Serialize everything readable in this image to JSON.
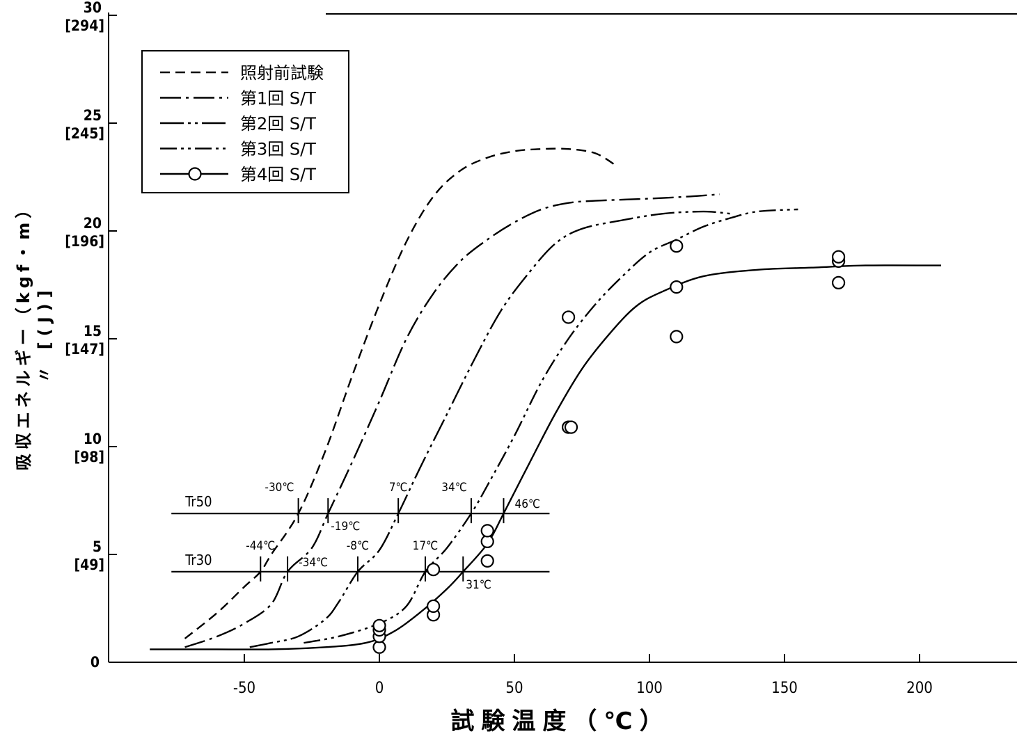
{
  "chart_data": {
    "type": "line",
    "xlabel": "試験温度（℃）",
    "ylabel": "吸収エネルギー（kgf・m）",
    "ylabel2": "〃 [(J)]",
    "xlim": [
      -100,
      235
    ],
    "ylim": [
      0,
      30
    ],
    "x_ticks": [
      {
        "value": -50,
        "label": "-50"
      },
      {
        "value": 0,
        "label": "0"
      },
      {
        "value": 50,
        "label": "50"
      },
      {
        "value": 100,
        "label": "100"
      },
      {
        "value": 150,
        "label": "150"
      },
      {
        "value": 200,
        "label": "200"
      }
    ],
    "y_ticks": [
      {
        "value": 0,
        "label": "0",
        "sub": ""
      },
      {
        "value": 5,
        "label": "5",
        "sub": "[49]"
      },
      {
        "value": 10,
        "label": "10",
        "sub": "[98]"
      },
      {
        "value": 15,
        "label": "15",
        "sub": "[147]"
      },
      {
        "value": 20,
        "label": "20",
        "sub": "[196]"
      },
      {
        "value": 25,
        "label": "25",
        "sub": "[245]"
      },
      {
        "value": 30,
        "label": "30",
        "sub": "[294]"
      }
    ],
    "legend_position": "top-left",
    "series": [
      {
        "name": "照射前試験",
        "style": "dash",
        "points": [
          [
            -72,
            1.1
          ],
          [
            -60,
            2.3
          ],
          [
            -50,
            3.5
          ],
          [
            -44,
            4.2
          ],
          [
            -40,
            5.0
          ],
          [
            -30,
            6.9
          ],
          [
            -20,
            9.8
          ],
          [
            -10,
            13.3
          ],
          [
            0,
            16.6
          ],
          [
            10,
            19.5
          ],
          [
            20,
            21.6
          ],
          [
            30,
            22.8
          ],
          [
            40,
            23.4
          ],
          [
            50,
            23.7
          ],
          [
            60,
            23.8
          ],
          [
            70,
            23.8
          ],
          [
            80,
            23.6
          ],
          [
            88,
            23.0
          ]
        ]
      },
      {
        "name": "第1回 S/T",
        "style": "dashdot",
        "points": [
          [
            -72,
            0.7
          ],
          [
            -60,
            1.2
          ],
          [
            -50,
            1.8
          ],
          [
            -40,
            2.7
          ],
          [
            -34,
            4.2
          ],
          [
            -25,
            5.3
          ],
          [
            -19,
            6.9
          ],
          [
            -10,
            9.3
          ],
          [
            0,
            12.1
          ],
          [
            10,
            15.0
          ],
          [
            20,
            17.1
          ],
          [
            30,
            18.6
          ],
          [
            40,
            19.6
          ],
          [
            50,
            20.4
          ],
          [
            60,
            21.0
          ],
          [
            70,
            21.3
          ],
          [
            80,
            21.4
          ],
          [
            100,
            21.5
          ],
          [
            115,
            21.6
          ],
          [
            126,
            21.7
          ]
        ]
      },
      {
        "name": "第2回 S/T",
        "style": "dashdotdot",
        "points": [
          [
            -48,
            0.7
          ],
          [
            -40,
            0.9
          ],
          [
            -30,
            1.2
          ],
          [
            -20,
            2.0
          ],
          [
            -15,
            2.8
          ],
          [
            -8,
            4.2
          ],
          [
            0,
            5.2
          ],
          [
            7,
            6.9
          ],
          [
            15,
            9.0
          ],
          [
            25,
            11.5
          ],
          [
            35,
            14.0
          ],
          [
            45,
            16.3
          ],
          [
            55,
            18.0
          ],
          [
            65,
            19.4
          ],
          [
            75,
            20.1
          ],
          [
            90,
            20.5
          ],
          [
            105,
            20.8
          ],
          [
            120,
            20.9
          ],
          [
            130,
            20.8
          ]
        ]
      },
      {
        "name": "第3回 S/T",
        "style": "dashdotdot2",
        "points": [
          [
            -28,
            0.9
          ],
          [
            -15,
            1.2
          ],
          [
            0,
            1.8
          ],
          [
            10,
            2.6
          ],
          [
            17,
            4.2
          ],
          [
            25,
            5.3
          ],
          [
            34,
            6.9
          ],
          [
            40,
            8.2
          ],
          [
            50,
            10.5
          ],
          [
            60,
            13.0
          ],
          [
            70,
            15.0
          ],
          [
            80,
            16.6
          ],
          [
            90,
            17.9
          ],
          [
            100,
            19.0
          ],
          [
            110,
            19.6
          ],
          [
            120,
            20.2
          ],
          [
            130,
            20.6
          ],
          [
            140,
            20.9
          ],
          [
            155,
            21.0
          ]
        ]
      },
      {
        "name": "第4回 S/T",
        "style": "solid",
        "marker": "circle",
        "points": [
          [
            -85,
            0.6
          ],
          [
            -60,
            0.6
          ],
          [
            -40,
            0.6
          ],
          [
            -20,
            0.7
          ],
          [
            -5,
            0.9
          ],
          [
            5,
            1.4
          ],
          [
            15,
            2.3
          ],
          [
            25,
            3.4
          ],
          [
            31,
            4.2
          ],
          [
            40,
            5.5
          ],
          [
            46,
            6.9
          ],
          [
            55,
            9.1
          ],
          [
            65,
            11.5
          ],
          [
            75,
            13.6
          ],
          [
            85,
            15.2
          ],
          [
            95,
            16.5
          ],
          [
            105,
            17.2
          ],
          [
            120,
            17.9
          ],
          [
            140,
            18.2
          ],
          [
            160,
            18.3
          ],
          [
            180,
            18.4
          ],
          [
            208,
            18.4
          ]
        ]
      }
    ],
    "scatter_points": [
      [
        0,
        0.7
      ],
      [
        0,
        1.2
      ],
      [
        0,
        1.5
      ],
      [
        0,
        1.7
      ],
      [
        20,
        2.2
      ],
      [
        20,
        2.6
      ],
      [
        20,
        4.3
      ],
      [
        40,
        4.7
      ],
      [
        40,
        5.6
      ],
      [
        40,
        6.1
      ],
      [
        70,
        10.9
      ],
      [
        71,
        10.9
      ],
      [
        70,
        16.0
      ],
      [
        110,
        15.1
      ],
      [
        110,
        17.4
      ],
      [
        110,
        19.3
      ],
      [
        170,
        17.6
      ],
      [
        170,
        18.6
      ],
      [
        170,
        18.8
      ]
    ],
    "reference_lines": [
      {
        "label": "Tr50",
        "y": 6.9,
        "x_range": [
          -77,
          63
        ],
        "markers": [
          -30,
          -19,
          7,
          34,
          46
        ]
      },
      {
        "label": "Tr30",
        "y": 4.2,
        "x_range": [
          -77,
          63
        ],
        "markers": [
          -44,
          -34,
          -8,
          17,
          31
        ]
      }
    ],
    "annotations": [
      {
        "text": "-30℃",
        "x": -30,
        "y": 6.9,
        "pos": "above-left"
      },
      {
        "text": "-19℃",
        "x": -19,
        "y": 6.9,
        "pos": "below-right"
      },
      {
        "text": "7℃",
        "x": 7,
        "y": 6.9,
        "pos": "above"
      },
      {
        "text": "34℃",
        "x": 34,
        "y": 6.9,
        "pos": "above-left"
      },
      {
        "text": "46℃",
        "x": 46,
        "y": 6.9,
        "pos": "right"
      },
      {
        "text": "-44℃",
        "x": -44,
        "y": 4.2,
        "pos": "above"
      },
      {
        "text": "-34℃",
        "x": -34,
        "y": 4.2,
        "pos": "right"
      },
      {
        "text": "-8℃",
        "x": -8,
        "y": 4.2,
        "pos": "above"
      },
      {
        "text": "17℃",
        "x": 17,
        "y": 4.2,
        "pos": "above"
      },
      {
        "text": "31℃",
        "x": 31,
        "y": 4.2,
        "pos": "below-right"
      }
    ]
  }
}
